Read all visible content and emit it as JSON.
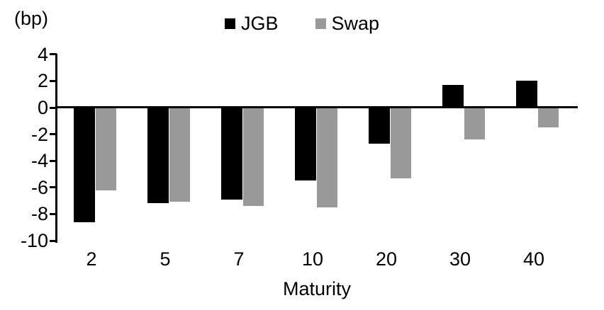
{
  "chart_data": {
    "type": "bar",
    "title": "",
    "unit_label": "(bp)",
    "xlabel": "Maturity",
    "ylabel": "",
    "categories": [
      "2",
      "5",
      "7",
      "10",
      "20",
      "30",
      "40"
    ],
    "series": [
      {
        "name": "JGB",
        "color": "#000000",
        "values": [
          -8.6,
          -7.2,
          -6.9,
          -5.5,
          -2.7,
          1.7,
          2.0
        ]
      },
      {
        "name": "Swap",
        "color": "#999999",
        "values": [
          -6.2,
          -7.1,
          -7.4,
          -7.5,
          -5.3,
          -2.4,
          -1.5
        ]
      }
    ],
    "y_ticks": [
      4,
      2,
      0,
      -2,
      -4,
      -6,
      -8,
      -10
    ],
    "ylim": [
      -10,
      4
    ],
    "legend_position": "top-center",
    "grid": false,
    "colors": {
      "jgb": "#000000",
      "swap": "#999999",
      "axis": "#000000",
      "background": "#ffffff"
    }
  }
}
